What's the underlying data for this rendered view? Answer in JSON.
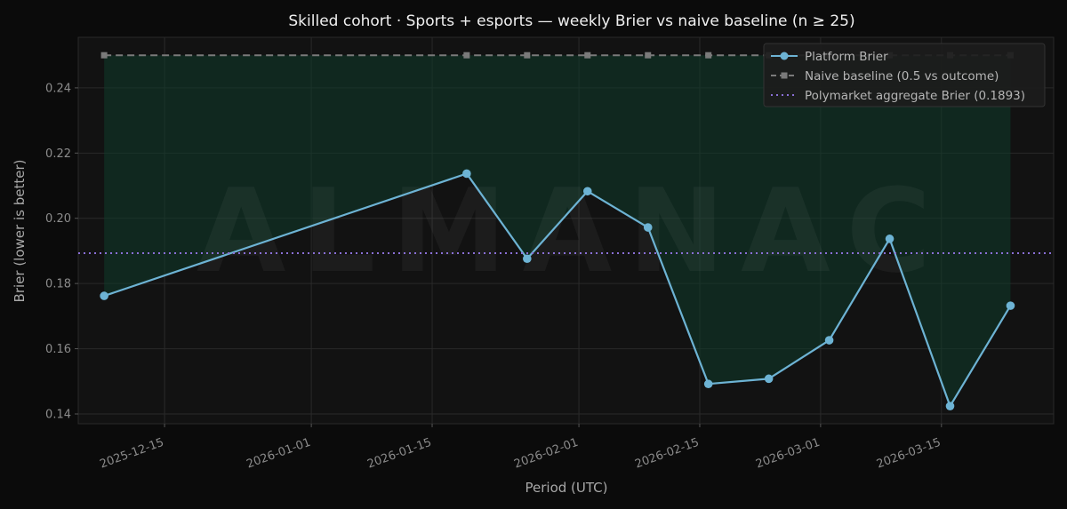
{
  "chart_data": {
    "type": "line",
    "title": "Skilled cohort · Sports + esports — weekly Brier vs naive baseline (n ≥ 25)",
    "xlabel": "Period (UTC)",
    "ylabel": "Brier (lower is better)",
    "watermark": "ALMANAC",
    "xlim": [
      "2025-12-05",
      "2026-03-28"
    ],
    "ylim": [
      0.137,
      0.2555
    ],
    "x_ticks": [
      "2025-12-15",
      "2026-01-01",
      "2026-01-15",
      "2026-02-01",
      "2026-02-15",
      "2026-03-01",
      "2026-03-15"
    ],
    "y_ticks": [
      0.14,
      0.16,
      0.18,
      0.2,
      0.22,
      0.24
    ],
    "grid": true,
    "legend_position": "top-right",
    "series": [
      {
        "name": "Platform Brier",
        "style": "solid",
        "color": "#6db3d4",
        "marker": "circle",
        "points": [
          {
            "x": "2025-12-08",
            "y": 0.1762
          },
          {
            "x": "2026-01-19",
            "y": 0.2137
          },
          {
            "x": "2026-01-26",
            "y": 0.1876
          },
          {
            "x": "2026-02-02",
            "y": 0.2083
          },
          {
            "x": "2026-02-09",
            "y": 0.1972
          },
          {
            "x": "2026-02-16",
            "y": 0.1492
          },
          {
            "x": "2026-02-23",
            "y": 0.1508
          },
          {
            "x": "2026-03-02",
            "y": 0.1626
          },
          {
            "x": "2026-03-09",
            "y": 0.1937
          },
          {
            "x": "2026-03-16",
            "y": 0.1424
          },
          {
            "x": "2026-03-23",
            "y": 0.1732
          }
        ]
      },
      {
        "name": "Naive baseline (0.5 vs outcome)",
        "style": "dashed",
        "color": "#7a7a7a",
        "marker": "square",
        "points": [
          {
            "x": "2025-12-08",
            "y": 0.25
          },
          {
            "x": "2026-01-19",
            "y": 0.25
          },
          {
            "x": "2026-01-26",
            "y": 0.25
          },
          {
            "x": "2026-02-02",
            "y": 0.25
          },
          {
            "x": "2026-02-09",
            "y": 0.25
          },
          {
            "x": "2026-02-16",
            "y": 0.25
          },
          {
            "x": "2026-02-23",
            "y": 0.25
          },
          {
            "x": "2026-03-02",
            "y": 0.25
          },
          {
            "x": "2026-03-09",
            "y": 0.25
          },
          {
            "x": "2026-03-16",
            "y": 0.25
          },
          {
            "x": "2026-03-23",
            "y": 0.25
          }
        ]
      },
      {
        "name": "Polymarket aggregate Brier (0.1893)",
        "style": "dotted",
        "color": "#8a6fd6",
        "type": "hline",
        "y": 0.1893
      }
    ],
    "fill_between": {
      "upper": "Naive baseline (0.5 vs outcome)",
      "lower": "Platform Brier",
      "color": "#0f3a2a"
    }
  }
}
